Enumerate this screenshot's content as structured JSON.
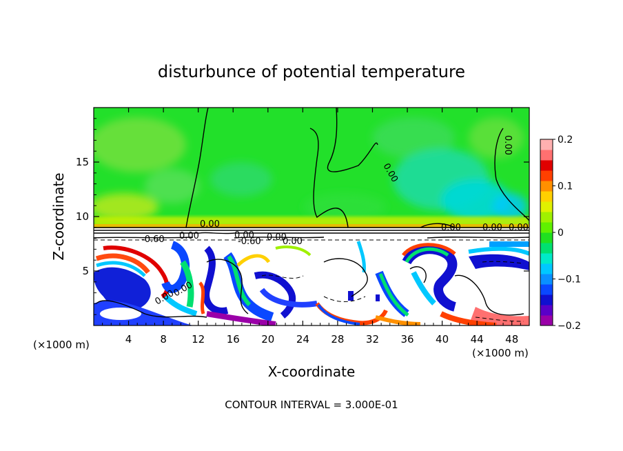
{
  "chart_data": {
    "type": "heatmap",
    "title": "disturbunce of potential temperature",
    "xlabel": "X-coordinate",
    "ylabel": "Z-coordinate",
    "x_unit_left": "(×1000 m)",
    "x_unit_right": "(×1000 m)",
    "xlim": [
      0,
      50
    ],
    "ylim": [
      0,
      20
    ],
    "x_ticks": [
      4,
      8,
      12,
      16,
      20,
      24,
      28,
      32,
      36,
      40,
      44,
      48
    ],
    "y_ticks": [
      5,
      10,
      15
    ],
    "colorbar": {
      "range": [
        -0.2,
        0.2
      ],
      "ticks": [
        "0.2",
        "0.1",
        "0",
        "−0.1",
        "−0.2"
      ],
      "colors": [
        "#9a00a8",
        "#5a00c8",
        "#1010d0",
        "#0a48ff",
        "#0a90ff",
        "#00c8ff",
        "#00eac8",
        "#00e070",
        "#20e020",
        "#60f000",
        "#a0f000",
        "#e0f000",
        "#ffd000",
        "#ff9000",
        "#ff4000",
        "#e00000",
        "#ff7070",
        "#ffb0b0"
      ]
    },
    "contour_labels": [
      "0.00",
      "0.00",
      "0.00",
      "0.00",
      "0.00",
      "0.00",
      "-0.60",
      "-0.60",
      "0.00",
      "0.00",
      "0.00",
      "0.00",
      "0.00",
      "0.00"
    ],
    "footer": "CONTOUR INTERVAL = 3.000E-01"
  }
}
